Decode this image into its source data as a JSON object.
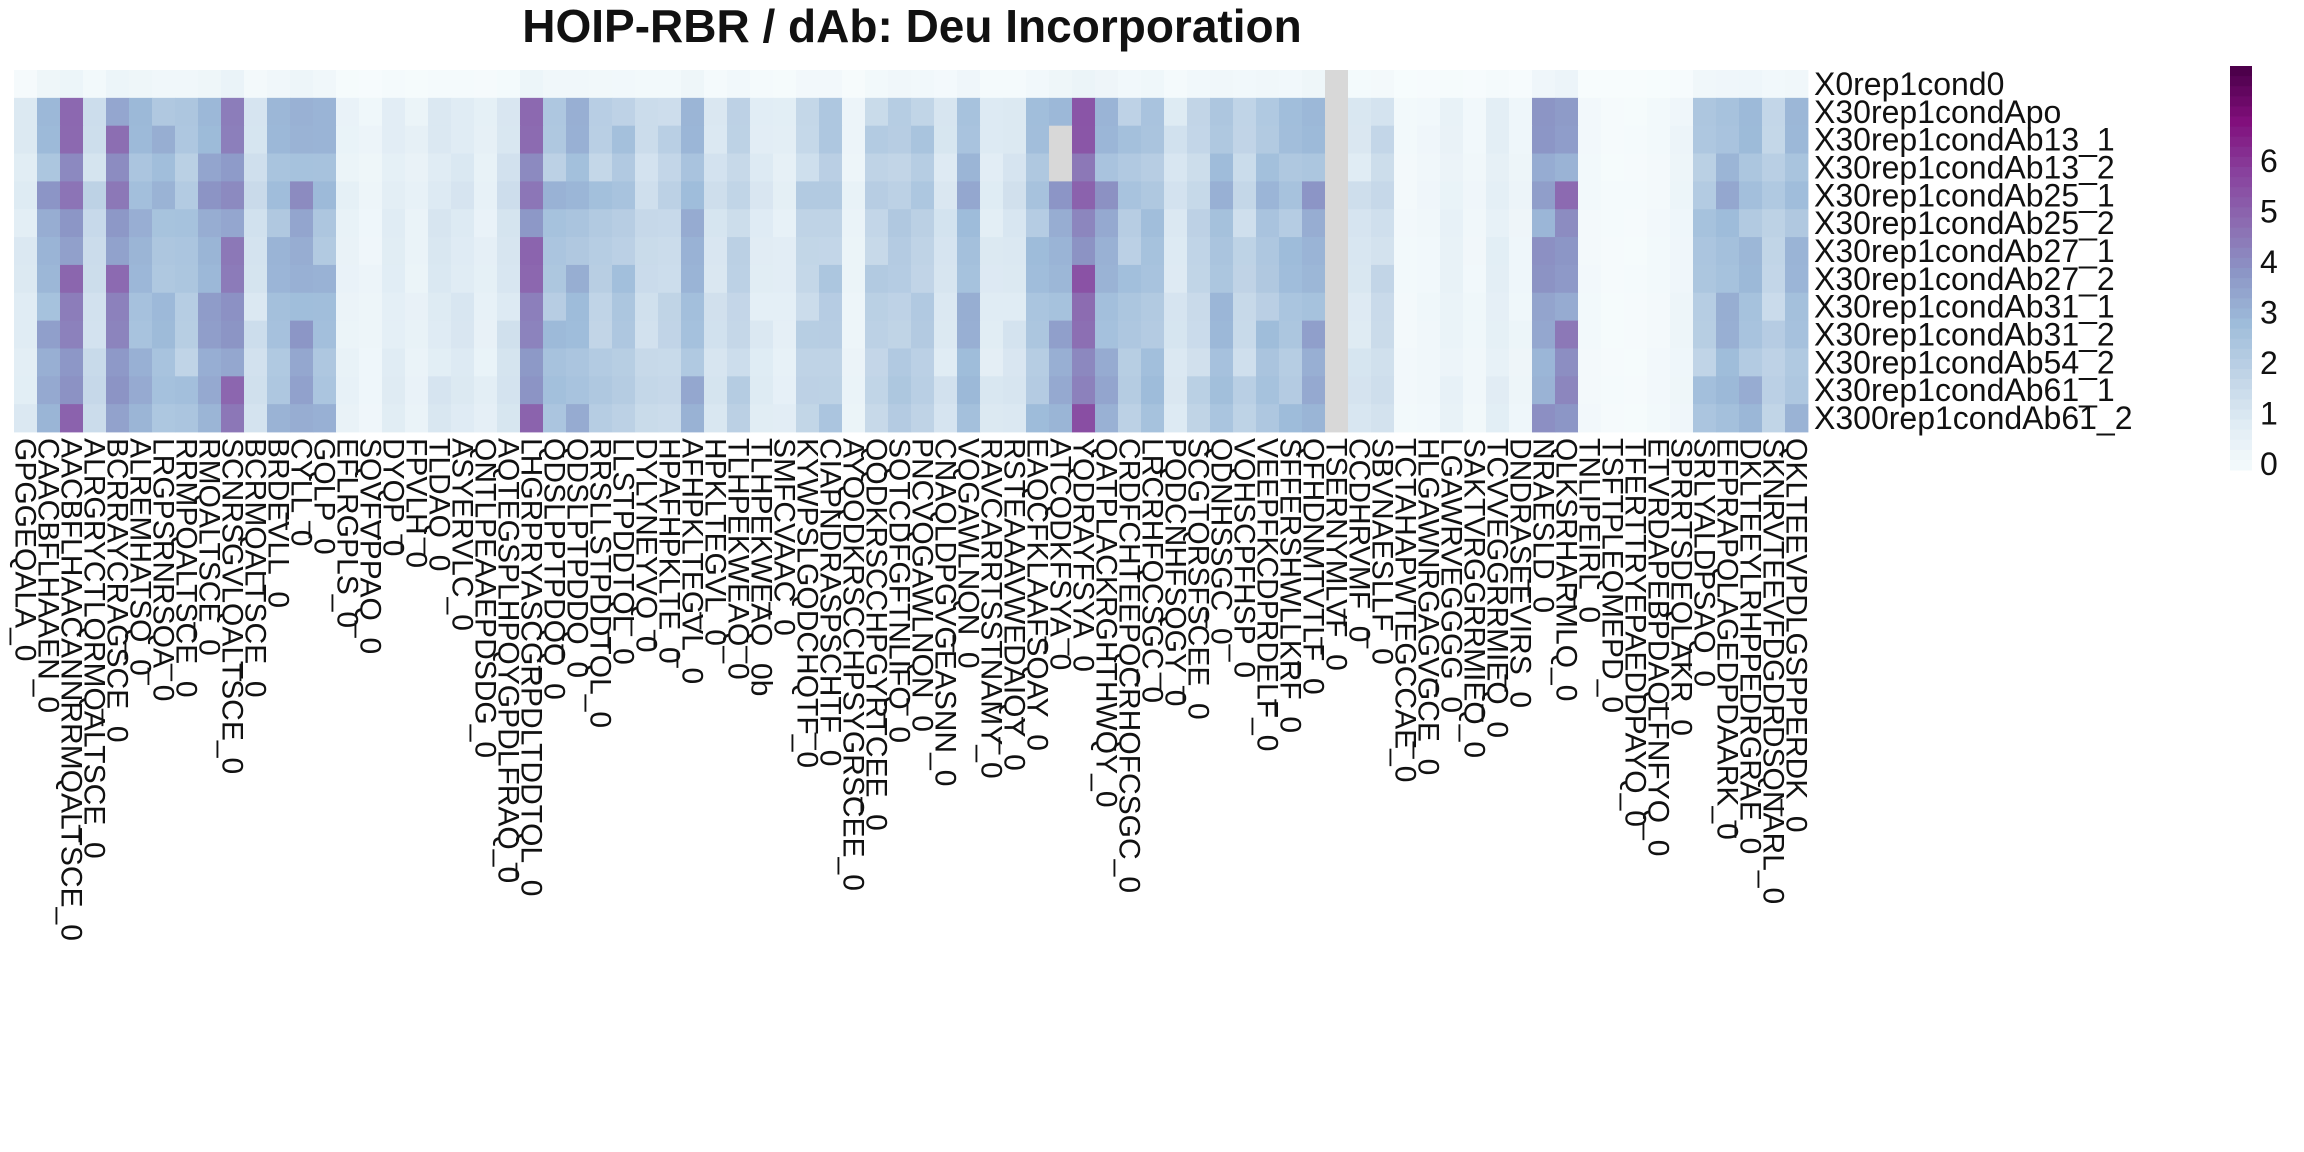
{
  "chart_data": {
    "type": "heatmap",
    "title": "HOIP-RBR / dAb: Deu Incorporation",
    "row_labels": [
      "X0rep1cond0",
      "X30rep1condApo",
      "X30rep1condAb13_1",
      "X30rep1condAb13_2",
      "X30rep1condAb25_1",
      "X30rep1condAb25_2",
      "X30rep1condAb27_1",
      "X30rep1condAb27_2",
      "X30rep1condAb31_1",
      "X30rep1condAb31_2",
      "X30rep1condAb54_2",
      "X30rep1condAb61_1",
      "X300rep1condAb61_2"
    ],
    "column_labels": [
      "GPGGEQALA_0",
      "CAACBFLHAAEN_0",
      "AACBFLHAACANNRRMQALTSCE_0",
      "ALRGRYCTLQRMQALTSCE_0",
      "BCRRAYCRAGSCE_0",
      "ALREMHATSQ_0",
      "LRGPSRNRSQA_0",
      "RRMPQALTSCE_0",
      "RMQALTSCE_0",
      "SCNRSGVLQALTSCE_0",
      "BCRMQALTSCE_0",
      "BRDEVLL_0",
      "CYLL_0",
      "GQLP_0",
      "EFLRGPLS_0",
      "SQVFVPPAQ_0",
      "DYQP_0",
      "FPVLH_0",
      "TLDAQ_0",
      "ASYERVLC_0",
      "QNTLPEAAEPDSDG_0",
      "AQTEGSPLHPQYGPDLFRAQ_0",
      "LHGRPRYASCGRPDLTDDTQL_0",
      "QDSLPPTPDQQ_0",
      "QDSLPTPDDQ_0",
      "RRSLLSTPDDTQL_0",
      "LLSTPDDTQL_0",
      "DYLYNEYVQ_0",
      "HPAFHPKLTE_0",
      "AFHPKLTEGVL_0",
      "HPKLTEGVL_0",
      "TLHPEKWEAQ_0",
      "TLHPEKWEAQ_0b",
      "SMFCVAAC_0",
      "KYWPSLGQDCHQTF_0",
      "CIAPNDRASPSCHTF_0",
      "AYQQDKRSCCHPSYGRSCEE_0",
      "QQDKRSCCHPGYRTCEE_0",
      "SQTCDFGFTNLIFQ_0",
      "PNCVQGAWLNQN_0",
      "CNAQLDPGVGEASNN_0",
      "VQGAWLNQN_0",
      "RAVCARRTSSTNAMY_0",
      "RSTEAAAVWEDAIQY_0",
      "EAQCFKLAAFSQAY_0",
      "ATCQDKFSYA_0",
      "YQDRAYFSYA_0",
      "QATPLACKRGHTHWQY_0",
      "CRDFCHTEEPQCRHQFCSGC_0",
      "LRCRHFQCSGC_0",
      "PQDCNHFSQGY_0",
      "SCGTQRSFSCEE_0",
      "QDNHSSGC_0",
      "VQHSCPFHSP_0",
      "VEEPFKCDPRDELF_0",
      "SFFERSHWLLKRF_0",
      "QFHDNMTVTLF_0",
      "TSERNYMLVF_0",
      "CCDHRVMF_0",
      "SBVNAESLLF_0",
      "TCTAHAPWTEGCCAE_0",
      "HLGAWNRGAGVGCE_0",
      "LGAWRVEGGGG_0",
      "SAKTVRGGRRMIEQ_0",
      "TCVVEGGRRMIEQ_0",
      "DNDRASEEVIRS_0",
      "NRAESLD_0",
      "QLKSRHARMLQ_0",
      "TNLIPEIRL_0",
      "TSFTPLEQMEPD_0",
      "TFERTTRYEPAEDDPAYQ_0",
      "ETVRDAPEBPDAQLFNFYQ_0",
      "SPRRTSDEQLAKR_0",
      "SRLYALDPSAQ_0",
      "EFPRAPQLAGEDPDAARK_0",
      "DKLTEEYLRHPPEDRGRAE_0",
      "SKNRVTEEVFDGDRDSQNARL_0",
      "QKLTEEVPDLGSPPERDK_0"
    ],
    "legend_ticks": [
      0,
      1,
      2,
      3,
      4,
      5,
      6
    ],
    "zlim": [
      0,
      8
    ],
    "na_color": "#D8D8D8",
    "color_stops": [
      "#F7FCFD",
      "#E0ECF4",
      "#BFD3E6",
      "#9EBCDA",
      "#8C96C6",
      "#8C6BB1",
      "#88419D",
      "#810F7C",
      "#4D004B"
    ],
    "column_profile": [
      1,
      3.2,
      4.4,
      1.6,
      4.2,
      3,
      2.8,
      2.4,
      3.4,
      4.2,
      1.4,
      2.8,
      3.4,
      2.8,
      0.6,
      0.4,
      0.9,
      0.6,
      1.1,
      1.1,
      0.7,
      1.3,
      4.5,
      2.6,
      2.9,
      2.2,
      2.4,
      1.6,
      1.8,
      3,
      1.3,
      1.9,
      1,
      0.8,
      1.9,
      2.2,
      0.5,
      2,
      2.2,
      2.2,
      1.2,
      3,
      1,
      1.2,
      2.6,
      3.2,
      4.8,
      3.2,
      2.4,
      2.6,
      1.2,
      1.8,
      2.8,
      1.8,
      2.6,
      2.6,
      3.2,
      1.6,
      1.2,
      1.6,
      0.2,
      0.3,
      0.6,
      0.3,
      0.8,
      0.4,
      3.6,
      4,
      0.2,
      0.1,
      0.1,
      0.2,
      0.4,
      2.4,
      3,
      2.8,
      2,
      2.8
    ],
    "row_profile": [
      0.12,
      1,
      1.05,
      0.95,
      1.12,
      1,
      1,
      1.04,
      0.98,
      1.02,
      0.96,
      1.06,
      1.03
    ],
    "na_cells": [
      [
        3,
        45
      ],
      [
        2,
        45
      ],
      [
        0,
        57
      ],
      [
        1,
        57
      ],
      [
        2,
        57
      ],
      [
        3,
        57
      ],
      [
        4,
        57
      ],
      [
        5,
        57
      ],
      [
        6,
        57
      ],
      [
        7,
        57
      ],
      [
        8,
        57
      ],
      [
        9,
        57
      ],
      [
        10,
        57
      ],
      [
        11,
        57
      ],
      [
        12,
        57
      ]
    ]
  }
}
